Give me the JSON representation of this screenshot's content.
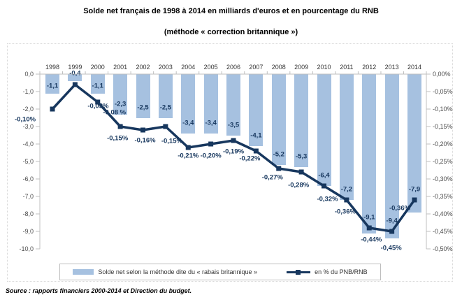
{
  "title": "Solde net français de 1998 à 2014 en milliards d'euros et en pourcentage du RNB",
  "subtitle": "(méthode « correction britannique »)",
  "source": "Source : rapports financiers 2000-2014 et Direction du budget.",
  "legend": {
    "bar_label": "Solde net selon la méthode dite du « rabais britannique »",
    "line_label": "en % du PNB/RNB"
  },
  "colors": {
    "bar": "#a6c1e0",
    "line": "#17375e",
    "axis": "#bfbfbf",
    "data_label": "#17375e"
  },
  "chart_data": {
    "type": "bar",
    "combo": "bar+line",
    "title": "Solde net français de 1998 à 2014 en milliards d'euros et en pourcentage du RNB",
    "subtitle": "(méthode « correction britannique »)",
    "categories": [
      "1998",
      "1999",
      "2000",
      "2001",
      "2002",
      "2003",
      "2004",
      "2005",
      "2006",
      "2007",
      "2008",
      "2009",
      "2010",
      "2011",
      "2012",
      "2013",
      "2014"
    ],
    "series": [
      {
        "name": "Solde net selon la méthode dite du « rabais britannique »",
        "type": "bar",
        "unit": "milliards d'euros",
        "axis": "left",
        "values": [
          -1.1,
          -0.4,
          -1.1,
          -2.3,
          -2.5,
          -2.5,
          -3.4,
          -3.4,
          -3.5,
          -4.1,
          -5.2,
          -5.3,
          -6.4,
          -7.2,
          -9.1,
          -9.4,
          -7.9
        ],
        "labels": [
          "-1,1",
          "-0,4",
          "-1,1",
          "-2,3",
          "-2,5",
          "-2,5",
          "-3,4",
          "-3,4",
          "-3,5",
          "-4,1",
          "-5,2",
          "-5,3",
          "-6,4",
          "-7,2",
          "-9,1",
          "-9,4",
          "-7,9"
        ]
      },
      {
        "name": "en % du PNB/RNB",
        "type": "line",
        "unit": "% du RNB",
        "axis": "right",
        "values": [
          -0.1,
          -0.03,
          -0.08,
          -0.15,
          -0.16,
          -0.15,
          -0.21,
          -0.2,
          -0.19,
          -0.22,
          -0.27,
          -0.28,
          -0.32,
          -0.36,
          -0.44,
          -0.45,
          -0.36
        ],
        "labels": [
          "-0,10%",
          "-0,03%",
          "-0,08 %",
          "-0,15%",
          "-0,16%",
          "-0,15%",
          "-0,21%",
          "-0,20%",
          "-0,19%",
          "-0,22%",
          "-0,27%",
          "-0,28%",
          "-0,32%",
          "-0,36%",
          "-0,44%",
          "-0,45%",
          "-0,36%"
        ]
      }
    ],
    "left_axis": {
      "min": -10,
      "max": 0,
      "step": 1,
      "tick_labels": [
        "0,0",
        "-1,0",
        "-2,0",
        "-3,0",
        "-4,0",
        "-5,0",
        "-6,0",
        "-7,0",
        "-8,0",
        "-9,0",
        "-10,0"
      ]
    },
    "right_axis": {
      "min": -0.5,
      "max": 0,
      "step": 0.05,
      "tick_labels": [
        "0,00%",
        "-0,05%",
        "-0,10%",
        "-0,15%",
        "-0,20%",
        "-0,25%",
        "-0,30%",
        "-0,35%",
        "-0,40%",
        "-0,45%",
        "-0,50%"
      ]
    },
    "grid": false,
    "legend_position": "bottom"
  }
}
